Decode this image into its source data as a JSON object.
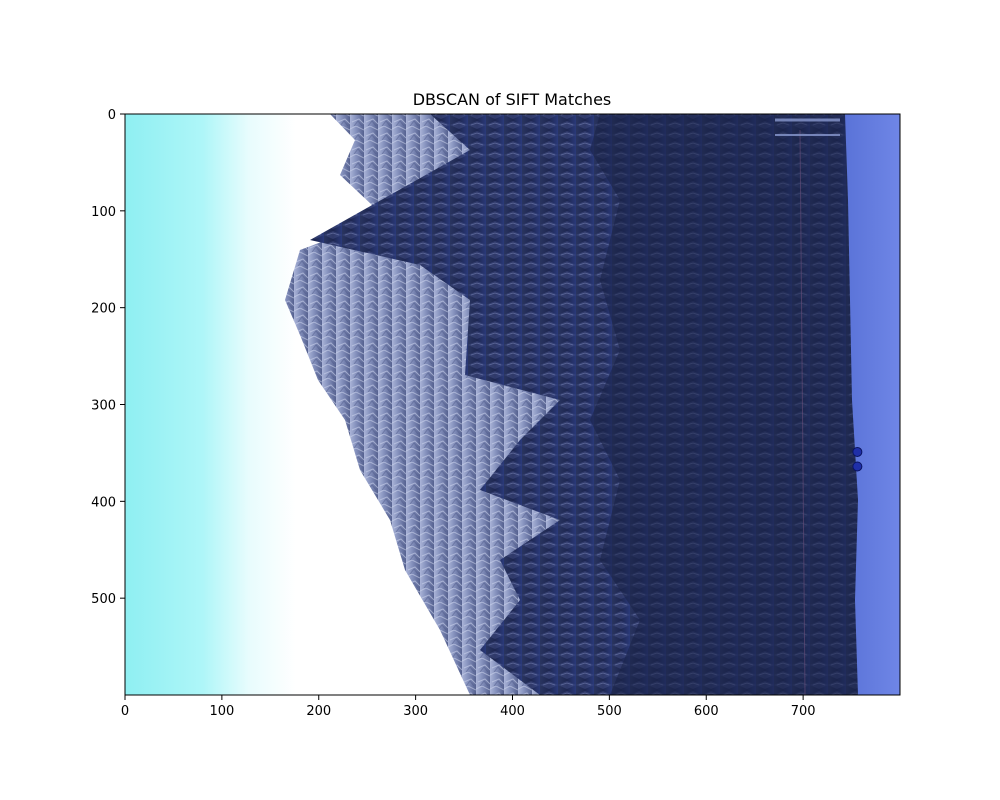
{
  "chart_data": {
    "type": "scatter",
    "title": "DBSCAN of SIFT Matches",
    "xlabel": "",
    "ylabel": "",
    "xlim": [
      0,
      800
    ],
    "ylim": [
      600,
      0
    ],
    "x_ticks": [
      0,
      100,
      200,
      300,
      400,
      500,
      600,
      700
    ],
    "y_ticks": [
      0,
      100,
      200,
      300,
      400,
      500
    ],
    "grid": false,
    "background_image": "rotated photo of snowy mountain cliff with dark fir trees, blue-tinted",
    "series": [
      {
        "color": "#1f2fa8",
        "points": [
          {
            "x": 756,
            "y": 349
          },
          {
            "x": 756,
            "y": 364
          }
        ]
      }
    ]
  }
}
